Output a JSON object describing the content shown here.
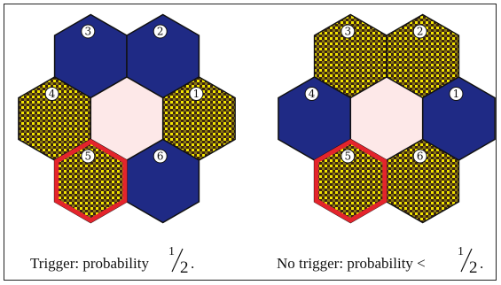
{
  "colors": {
    "blue": "#1f2a85",
    "center": "#fde8e8",
    "red_outline": "#e4242c",
    "pattern_dark": "#3b2310",
    "pattern_dot": "#f2e600"
  },
  "panels": [
    {
      "hexes": [
        {
          "label": "3",
          "fill": "blue"
        },
        {
          "label": "2",
          "fill": "blue"
        },
        {
          "label": "4",
          "fill": "pattern"
        },
        {
          "label": "",
          "fill": "center"
        },
        {
          "label": "1",
          "fill": "pattern"
        },
        {
          "label": "5",
          "fill": "pattern",
          "highlight": true
        },
        {
          "label": "6",
          "fill": "blue"
        }
      ],
      "caption_text": "Trigger: probability ",
      "frac_num": "1",
      "frac_den": "2",
      "caption_end": "."
    },
    {
      "hexes": [
        {
          "label": "3",
          "fill": "pattern"
        },
        {
          "label": "2",
          "fill": "pattern"
        },
        {
          "label": "4",
          "fill": "blue"
        },
        {
          "label": "",
          "fill": "center"
        },
        {
          "label": "1",
          "fill": "blue"
        },
        {
          "label": "5",
          "fill": "pattern",
          "highlight": true
        },
        {
          "label": "6",
          "fill": "pattern"
        }
      ],
      "caption_text": "No trigger: probability < ",
      "frac_num": "1",
      "frac_den": "2",
      "caption_end": "."
    }
  ]
}
